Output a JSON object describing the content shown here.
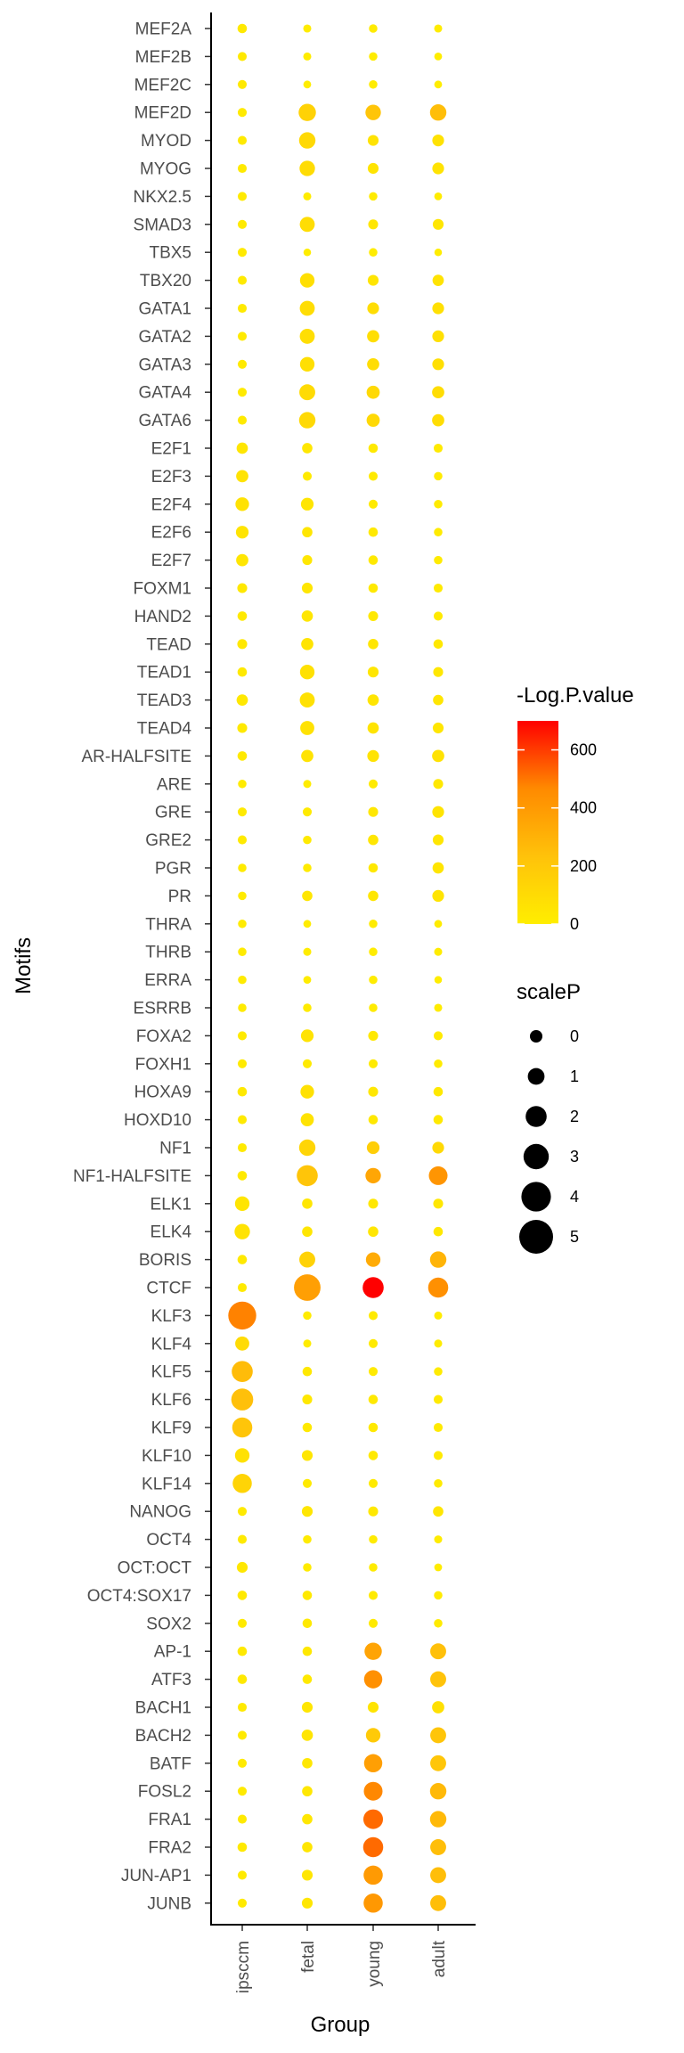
{
  "chart_data": {
    "type": "scatter",
    "xlabel": "Group",
    "ylabel": "Motifs",
    "groups": [
      "ipsccm",
      "fetal",
      "young",
      "adult"
    ],
    "motifs": [
      "MEF2A",
      "MEF2B",
      "MEF2C",
      "MEF2D",
      "MYOD",
      "MYOG",
      "NKX2.5",
      "SMAD3",
      "TBX5",
      "TBX20",
      "GATA1",
      "GATA2",
      "GATA3",
      "GATA4",
      "GATA6",
      "E2F1",
      "E2F3",
      "E2F4",
      "E2F6",
      "E2F7",
      "FOXM1",
      "HAND2",
      "TEAD",
      "TEAD1",
      "TEAD3",
      "TEAD4",
      "AR-HALFSITE",
      "ARE",
      "GRE",
      "GRE2",
      "PGR",
      "PR",
      "THRA",
      "THRB",
      "ERRA",
      "ESRRB",
      "FOXA2",
      "FOXH1",
      "HOXA9",
      "HOXD10",
      "NF1",
      "NF1-HALFSITE",
      "ELK1",
      "ELK4",
      "BORIS",
      "CTCF",
      "KLF3",
      "KLF4",
      "KLF5",
      "KLF6",
      "KLF9",
      "KLF10",
      "KLF14",
      "NANOG",
      "OCT4",
      "OCT:OCT",
      "OCT4:SOX17",
      "SOX2",
      "AP-1",
      "ATF3",
      "BACH1",
      "BACH2",
      "BATF",
      "FOSL2",
      "FRA1",
      "FRA2",
      "JUN-AP1",
      "JUNB"
    ],
    "logp": [
      [
        25,
        10,
        15,
        8
      ],
      [
        25,
        8,
        12,
        6
      ],
      [
        25,
        6,
        12,
        5
      ],
      [
        20,
        150,
        220,
        250
      ],
      [
        22,
        110,
        60,
        65
      ],
      [
        20,
        95,
        55,
        60
      ],
      [
        20,
        10,
        15,
        8
      ],
      [
        20,
        90,
        40,
        40
      ],
      [
        20,
        5,
        12,
        6
      ],
      [
        20,
        80,
        50,
        60
      ],
      [
        20,
        90,
        90,
        75
      ],
      [
        20,
        85,
        85,
        75
      ],
      [
        20,
        80,
        90,
        80
      ],
      [
        20,
        100,
        110,
        90
      ],
      [
        20,
        110,
        110,
        90
      ],
      [
        45,
        35,
        25,
        20
      ],
      [
        60,
        20,
        20,
        15
      ],
      [
        65,
        50,
        20,
        15
      ],
      [
        55,
        40,
        25,
        15
      ],
      [
        45,
        35,
        25,
        15
      ],
      [
        30,
        40,
        25,
        20
      ],
      [
        25,
        40,
        30,
        20
      ],
      [
        30,
        55,
        40,
        30
      ],
      [
        25,
        70,
        45,
        35
      ],
      [
        30,
        70,
        50,
        40
      ],
      [
        25,
        65,
        55,
        45
      ],
      [
        25,
        60,
        60,
        65
      ],
      [
        15,
        10,
        20,
        30
      ],
      [
        20,
        20,
        35,
        55
      ],
      [
        20,
        20,
        40,
        45
      ],
      [
        15,
        15,
        30,
        50
      ],
      [
        15,
        40,
        40,
        55
      ],
      [
        15,
        10,
        15,
        8
      ],
      [
        15,
        10,
        12,
        10
      ],
      [
        15,
        8,
        12,
        6
      ],
      [
        15,
        15,
        15,
        10
      ],
      [
        20,
        60,
        30,
        20
      ],
      [
        20,
        20,
        20,
        15
      ],
      [
        25,
        70,
        35,
        25
      ],
      [
        20,
        60,
        30,
        25
      ],
      [
        20,
        130,
        170,
        110
      ],
      [
        25,
        220,
        350,
        420
      ],
      [
        50,
        40,
        35,
        35
      ],
      [
        60,
        40,
        40,
        30
      ],
      [
        25,
        150,
        330,
        290
      ],
      [
        20,
        380,
        700,
        440
      ],
      [
        480,
        15,
        20,
        10
      ],
      [
        100,
        10,
        20,
        10
      ],
      [
        260,
        30,
        20,
        15
      ],
      [
        240,
        30,
        25,
        20
      ],
      [
        220,
        25,
        25,
        20
      ],
      [
        70,
        40,
        25,
        20
      ],
      [
        140,
        20,
        20,
        15
      ],
      [
        20,
        40,
        30,
        40
      ],
      [
        20,
        15,
        15,
        10
      ],
      [
        35,
        15,
        15,
        8
      ],
      [
        25,
        25,
        20,
        15
      ],
      [
        20,
        25,
        20,
        15
      ],
      [
        25,
        30,
        360,
        240
      ],
      [
        25,
        25,
        440,
        230
      ],
      [
        20,
        45,
        55,
        75
      ],
      [
        20,
        50,
        190,
        220
      ],
      [
        20,
        35,
        380,
        210
      ],
      [
        20,
        35,
        470,
        270
      ],
      [
        20,
        35,
        520,
        270
      ],
      [
        25,
        40,
        520,
        250
      ],
      [
        20,
        45,
        400,
        250
      ],
      [
        20,
        45,
        410,
        250
      ]
    ],
    "size": [
      [
        0.5,
        0.2,
        0.3,
        0.2
      ],
      [
        0.4,
        0.2,
        0.3,
        0.15
      ],
      [
        0.4,
        0.15,
        0.3,
        0.15
      ],
      [
        0.4,
        2.2,
        1.8,
        2.0
      ],
      [
        0.4,
        2.0,
        0.8,
        1.0
      ],
      [
        0.4,
        1.8,
        0.8,
        1.0
      ],
      [
        0.4,
        0.2,
        0.3,
        0.15
      ],
      [
        0.4,
        1.7,
        0.6,
        0.8
      ],
      [
        0.4,
        0.1,
        0.3,
        0.1
      ],
      [
        0.4,
        1.6,
        0.8,
        0.9
      ],
      [
        0.4,
        1.7,
        1.0,
        1.0
      ],
      [
        0.4,
        1.7,
        1.1,
        1.0
      ],
      [
        0.4,
        1.6,
        1.1,
        1.0
      ],
      [
        0.4,
        1.9,
        1.3,
        1.1
      ],
      [
        0.4,
        2.0,
        1.3,
        1.1
      ],
      [
        0.9,
        0.7,
        0.5,
        0.4
      ],
      [
        1.1,
        0.4,
        0.4,
        0.3
      ],
      [
        1.4,
        1.2,
        0.4,
        0.3
      ],
      [
        1.2,
        0.7,
        0.5,
        0.3
      ],
      [
        1.1,
        0.6,
        0.5,
        0.3
      ],
      [
        0.6,
        0.8,
        0.5,
        0.4
      ],
      [
        0.5,
        0.9,
        0.6,
        0.4
      ],
      [
        0.6,
        1.1,
        0.7,
        0.5
      ],
      [
        0.5,
        1.6,
        0.8,
        0.6
      ],
      [
        0.9,
        1.7,
        0.9,
        0.7
      ],
      [
        0.6,
        1.5,
        0.9,
        0.8
      ],
      [
        0.5,
        1.1,
        1.0,
        1.1
      ],
      [
        0.3,
        0.2,
        0.4,
        0.6
      ],
      [
        0.4,
        0.4,
        0.6,
        1.0
      ],
      [
        0.4,
        0.3,
        0.7,
        0.8
      ],
      [
        0.3,
        0.3,
        0.5,
        0.9
      ],
      [
        0.3,
        0.7,
        0.7,
        1.0
      ],
      [
        0.3,
        0.15,
        0.3,
        0.15
      ],
      [
        0.3,
        0.2,
        0.3,
        0.2
      ],
      [
        0.3,
        0.15,
        0.3,
        0.1
      ],
      [
        0.3,
        0.3,
        0.3,
        0.2
      ],
      [
        0.4,
        1.2,
        0.6,
        0.4
      ],
      [
        0.4,
        0.4,
        0.4,
        0.3
      ],
      [
        0.5,
        1.4,
        0.6,
        0.5
      ],
      [
        0.4,
        1.3,
        0.5,
        0.5
      ],
      [
        0.4,
        2.0,
        1.2,
        1.0
      ],
      [
        0.5,
        3.0,
        1.8,
        2.5
      ],
      [
        1.6,
        0.7,
        0.6,
        0.6
      ],
      [
        1.8,
        0.7,
        0.7,
        0.5
      ],
      [
        0.5,
        1.9,
        1.6,
        2.0
      ],
      [
        0.4,
        4.2,
        3.0,
        2.8
      ],
      [
        4.5,
        0.3,
        0.4,
        0.2
      ],
      [
        1.5,
        0.2,
        0.4,
        0.2
      ],
      [
        3.0,
        0.5,
        0.4,
        0.3
      ],
      [
        3.2,
        0.6,
        0.5,
        0.4
      ],
      [
        2.8,
        0.5,
        0.5,
        0.4
      ],
      [
        1.6,
        0.8,
        0.5,
        0.4
      ],
      [
        2.6,
        0.4,
        0.4,
        0.3
      ],
      [
        0.4,
        0.8,
        0.6,
        0.7
      ],
      [
        0.4,
        0.3,
        0.3,
        0.2
      ],
      [
        0.8,
        0.3,
        0.3,
        0.15
      ],
      [
        0.5,
        0.5,
        0.4,
        0.3
      ],
      [
        0.4,
        0.5,
        0.4,
        0.3
      ],
      [
        0.5,
        0.5,
        2.2,
        1.9
      ],
      [
        0.5,
        0.5,
        2.4,
        1.9
      ],
      [
        0.4,
        0.8,
        0.8,
        1.1
      ],
      [
        0.4,
        0.9,
        1.6,
        1.9
      ],
      [
        0.4,
        0.7,
        2.4,
        1.9
      ],
      [
        0.4,
        0.7,
        2.5,
        2.0
      ],
      [
        0.4,
        0.7,
        2.7,
        2.0
      ],
      [
        0.5,
        0.7,
        2.8,
        1.9
      ],
      [
        0.4,
        0.8,
        2.6,
        1.9
      ],
      [
        0.4,
        0.8,
        2.6,
        1.9
      ]
    ],
    "color_legend": {
      "title": "-Log.P.value",
      "breaks": [
        0,
        200,
        400,
        600
      ],
      "range": [
        0,
        700
      ],
      "colors": [
        "#FFEE00",
        "#FFC20A",
        "#FF8A00",
        "#FF0000"
      ]
    },
    "size_legend": {
      "title": "scaleP",
      "breaks": [
        0,
        1,
        2,
        3,
        4,
        5
      ]
    },
    "grid": false,
    "legend_position": "right"
  }
}
